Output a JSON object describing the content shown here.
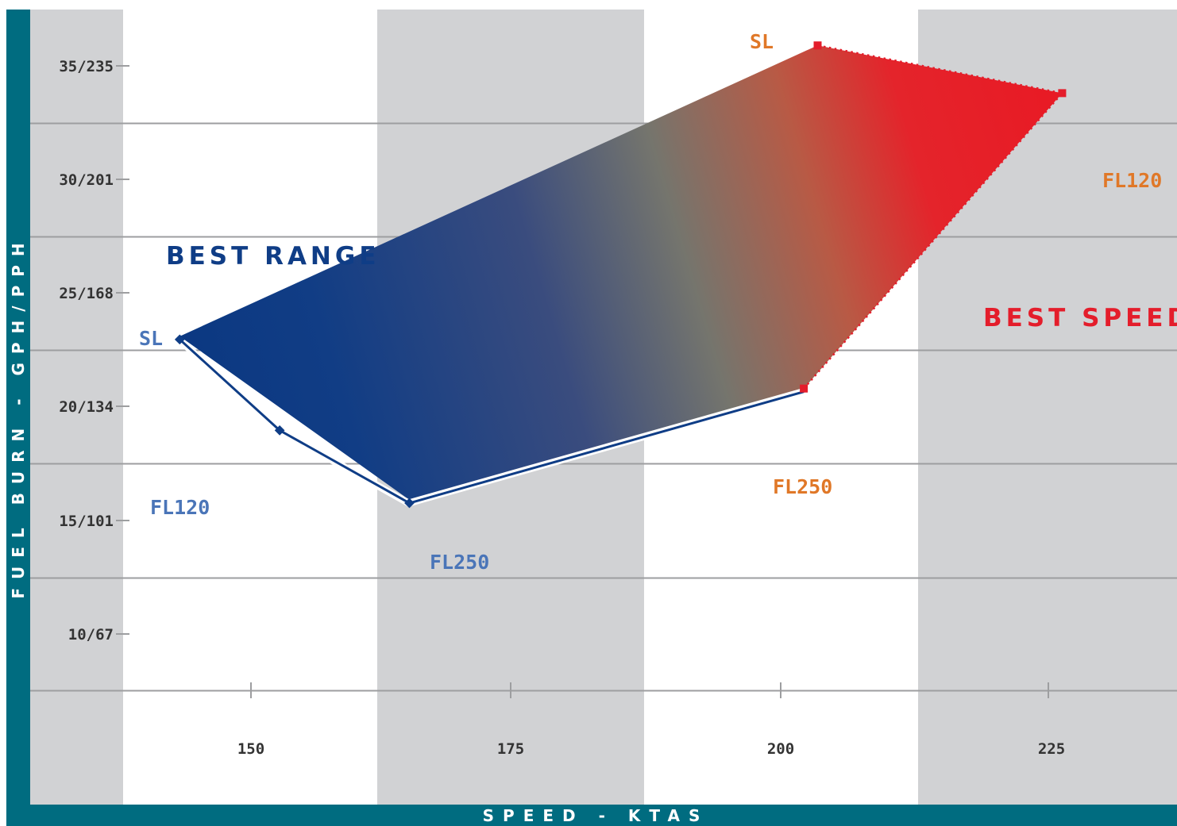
{
  "chart_data": {
    "type": "line",
    "xlabel": "SPEED - KTAS",
    "ylabel": "FUEL BURN - GPH/PPH",
    "x_ticks": [
      "150",
      "175",
      "200",
      "225"
    ],
    "y_ticks": [
      "10/67",
      "15/101",
      "20/134",
      "25/168",
      "30/201",
      "35/235"
    ],
    "xlim": [
      139.5,
      236.9
    ],
    "ylim": [
      6.7,
      37
    ],
    "grid": "horizontal",
    "series": [
      {
        "name": "BEST RANGE",
        "color": "#0f3d86",
        "points": [
          {
            "x": 143.3,
            "y": 23.1,
            "label": "SL"
          },
          {
            "x": 152.7,
            "y": 19.1,
            "label": "FL120"
          },
          {
            "x": 164.9,
            "y": 15.9,
            "label": "FL250"
          }
        ]
      },
      {
        "name": "BEST SPEED",
        "color": "#e41d2b",
        "points": [
          {
            "x": 202.0,
            "y": 20.8,
            "label": "FL250"
          },
          {
            "x": 226.3,
            "y": 33.8,
            "label": "FL120"
          },
          {
            "x": 203.3,
            "y": 35.9,
            "label": "SL"
          }
        ]
      }
    ]
  },
  "colors": {
    "axis_bar": "#006c80",
    "band": "#d1d2d4",
    "best_range": "#0f3d86",
    "best_range_label": "#4a75b8",
    "best_speed": "#e41d2b",
    "best_speed_label": "#e07828"
  }
}
